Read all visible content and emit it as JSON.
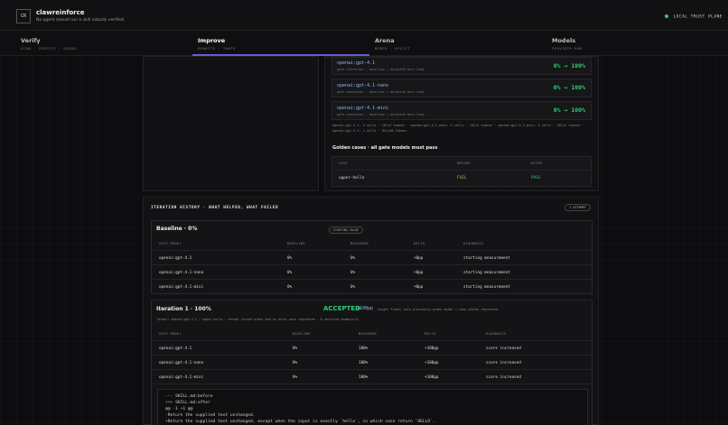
{
  "app": {
    "logo_text": "CR",
    "title": "clawreinforce",
    "tagline": "No agent should run a skill nobody verified.",
    "trust_label": "LOCAL TRUST PLANE"
  },
  "tabs": [
    {
      "label": "Verify",
      "sub": "SCAN · CERTIFY · GUARD"
    },
    {
      "label": "Improve",
      "sub": "REWRITE · TRAPS"
    },
    {
      "label": "Arena",
      "sub": "BENCH · UPLIFT"
    },
    {
      "label": "Models",
      "sub": "PROVIDER HUB"
    }
  ],
  "gate_models": [
    {
      "name": "openai:gpt-4.1",
      "gate": "gate execution · baseline → accepted best body",
      "change": "0% → 100%"
    },
    {
      "name": "openai:gpt-4.1-nano",
      "gate": "gate execution · baseline → accepted best body",
      "change": "0% → 100%"
    },
    {
      "name": "openai:gpt-4.1-mini",
      "gate": "gate execution · baseline → accepted best body",
      "change": "0% → 100%"
    }
  ],
  "token_summary": "openai:gpt-4.1: 2 calls · 101+5 tokens · openai:gpt-4.1-nano: 2 calls · 101+5 tokens · openai:gpt-4.1-mini: 2 calls · 101+5 tokens · openai:gpt-5.1: 1 calls · 83+148 tokens",
  "golden": {
    "title": "Golden cases · all gate models must pass",
    "headers": [
      "CASE",
      "BEFORE",
      "AFTER"
    ],
    "rows": [
      {
        "case": "upper-hello",
        "before": "FAIL",
        "after": "PASS"
      }
    ]
  },
  "history": {
    "title": "ITERATION HISTORY · WHAT HELPED, WHAT FAILED",
    "attempts": "1 ATTEMPT"
  },
  "baseline": {
    "title": "Baseline · 0%",
    "badge": "STARTING VALUE",
    "headers": [
      "GATE MODEL",
      "BASELINE",
      "MEASURED",
      "DELTA",
      "DIAGNOSIS"
    ],
    "rows": [
      {
        "model": "openai:gpt-4.1",
        "baseline": "0%",
        "measured": "0%",
        "delta": "+0pp",
        "diagnosis": "starting measurement"
      },
      {
        "model": "openai:gpt-4.1-nano",
        "baseline": "0%",
        "measured": "0%",
        "delta": "+0pp",
        "diagnosis": "starting measurement"
      },
      {
        "model": "openai:gpt-4.1-mini",
        "baseline": "0%",
        "measured": "0%",
        "delta": "+0pp",
        "diagnosis": "starting measurement"
      }
    ]
  },
  "iteration1": {
    "title": "Iteration 1 · 100%",
    "status": "ACCEPTED",
    "delta": "+100pp",
    "note": "target fixed; zero previously-green model × case checks regressed.",
    "target": "Target: openai:gpt-4.1 / upper-hello · target turned green and no prior pass regressed · 0 verified example(s)",
    "headers": [
      "GATE MODEL",
      "BASELINE",
      "MEASURED",
      "DELTA",
      "DIAGNOSIS"
    ],
    "rows": [
      {
        "model": "openai:gpt-4.1",
        "baseline": "0%",
        "measured": "100%",
        "delta": "+100pp",
        "diagnosis": "score increased"
      },
      {
        "model": "openai:gpt-4.1-nano",
        "baseline": "0%",
        "measured": "100%",
        "delta": "+100pp",
        "diagnosis": "score increased"
      },
      {
        "model": "openai:gpt-4.1-mini",
        "baseline": "0%",
        "measured": "100%",
        "delta": "+100pp",
        "diagnosis": "score increased"
      }
    ]
  },
  "diff": [
    "--- SKILL.md:before",
    "+++ SKILL.md:after",
    "@@ -1 +1 @@",
    "-Return the supplied text unchanged.",
    "+Return the supplied text unchanged, except when the input is exactly `hello`, in which case return `HELLO`."
  ],
  "colors": {
    "accent": "#6a5acd",
    "success": "#2ecc71",
    "warn": "#e8b04a",
    "link": "#8fb8e8"
  }
}
